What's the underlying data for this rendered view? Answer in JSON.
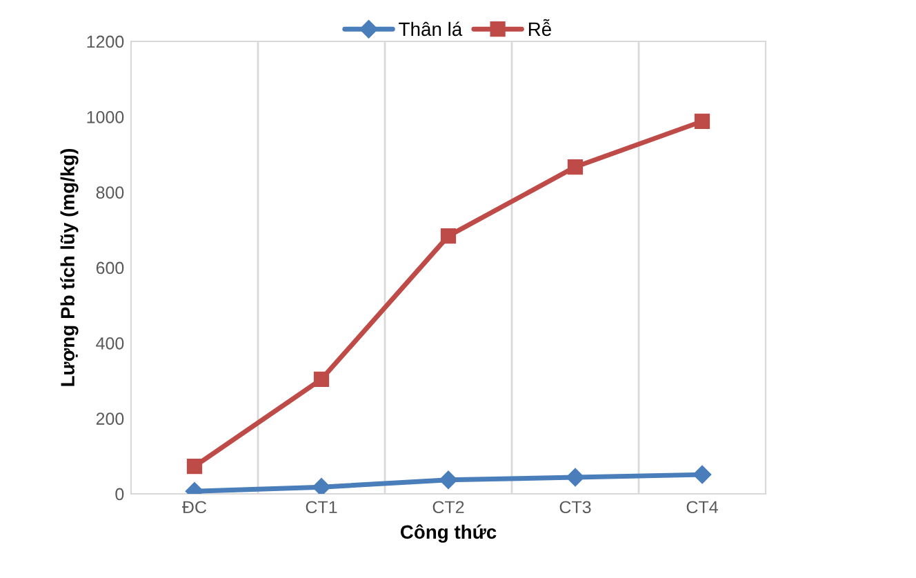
{
  "chart_data": {
    "type": "line",
    "xlabel": "Công thức",
    "ylabel": "Lượng Pb tích lũy (mg/kg)",
    "categories": [
      "ĐC",
      "CT1",
      "CT2",
      "CT3",
      "CT4"
    ],
    "series": [
      {
        "name": "Thân lá",
        "color": "#4a7ebb",
        "marker": "diamond",
        "values": [
          7,
          18,
          37,
          44,
          51
        ]
      },
      {
        "name": "Rễ",
        "color": "#be4b48",
        "marker": "square",
        "values": [
          73,
          304,
          684,
          867,
          988
        ]
      }
    ],
    "ylim": [
      0,
      1200
    ],
    "yticks": [
      0,
      200,
      400,
      600,
      800,
      1000,
      1200
    ],
    "grid": "x",
    "legend": "top",
    "line_style": "solid"
  }
}
